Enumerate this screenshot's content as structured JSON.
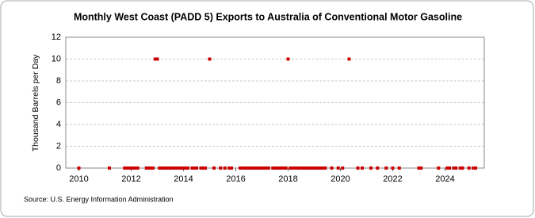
{
  "chart_data": {
    "type": "scatter",
    "title": "Monthly West Coast (PADD 5) Exports to Australia of Conventional Motor Gasoline",
    "y_label": "Thousand Barrels per Day",
    "source": "Source: U.S. Energy Information Administration",
    "color": "#cc0000",
    "xlim": [
      2009.5,
      2025.5
    ],
    "xticks": [
      2010,
      2012,
      2014,
      2016,
      2018,
      2020,
      2022,
      2024
    ],
    "ylim": [
      0,
      12
    ],
    "yticks": [
      0,
      2,
      4,
      6,
      8,
      10,
      12
    ],
    "grid": true,
    "x": [
      2010.0,
      2011.167,
      2011.75,
      2011.833,
      2011.917,
      2012.0,
      2012.083,
      2012.167,
      2012.25,
      2012.583,
      2012.667,
      2012.75,
      2012.833,
      2012.917,
      2013.0,
      2013.083,
      2013.167,
      2013.25,
      2013.333,
      2013.417,
      2013.5,
      2013.583,
      2013.667,
      2013.75,
      2013.833,
      2013.917,
      2014.0,
      2014.083,
      2014.167,
      2014.333,
      2014.417,
      2014.5,
      2014.667,
      2014.75,
      2014.833,
      2015.0,
      2015.167,
      2015.417,
      2015.583,
      2015.75,
      2015.833,
      2016.167,
      2016.25,
      2016.333,
      2016.417,
      2016.5,
      2016.583,
      2016.667,
      2016.75,
      2016.833,
      2016.917,
      2017.0,
      2017.083,
      2017.167,
      2017.25,
      2017.417,
      2017.5,
      2017.583,
      2017.667,
      2017.75,
      2017.833,
      2017.917,
      2018.0,
      2018.083,
      2018.167,
      2018.25,
      2018.333,
      2018.417,
      2018.5,
      2018.583,
      2018.667,
      2018.75,
      2018.833,
      2018.917,
      2019.0,
      2019.083,
      2019.167,
      2019.25,
      2019.333,
      2019.417,
      2019.667,
      2019.917,
      2020.083,
      2020.333,
      2020.667,
      2020.833,
      2021.167,
      2021.417,
      2021.75,
      2022.0,
      2022.25,
      2023.0,
      2023.083,
      2023.75,
      2024.083,
      2024.167,
      2024.333,
      2024.417,
      2024.583,
      2024.667,
      2024.917,
      2025.083,
      2025.167
    ],
    "values": [
      0,
      0,
      0,
      0,
      0,
      0,
      0,
      0,
      0,
      0,
      0,
      0,
      0,
      10,
      10,
      0,
      0,
      0,
      0,
      0,
      0,
      0,
      0,
      0,
      0,
      0,
      0,
      0,
      0,
      0,
      0,
      0,
      0,
      0,
      0,
      10,
      0,
      0,
      0,
      0,
      0,
      0,
      0,
      0,
      0,
      0,
      0,
      0,
      0,
      0,
      0,
      0,
      0,
      0,
      0,
      0,
      0,
      0,
      0,
      0,
      0,
      0,
      10,
      0,
      0,
      0,
      0,
      0,
      0,
      0,
      0,
      0,
      0,
      0,
      0,
      0,
      0,
      0,
      0,
      0,
      0,
      0,
      0,
      10,
      0,
      0,
      0,
      0,
      0,
      0,
      0,
      0,
      0,
      0,
      0,
      0,
      0,
      0,
      0,
      0,
      0,
      0,
      0
    ]
  }
}
